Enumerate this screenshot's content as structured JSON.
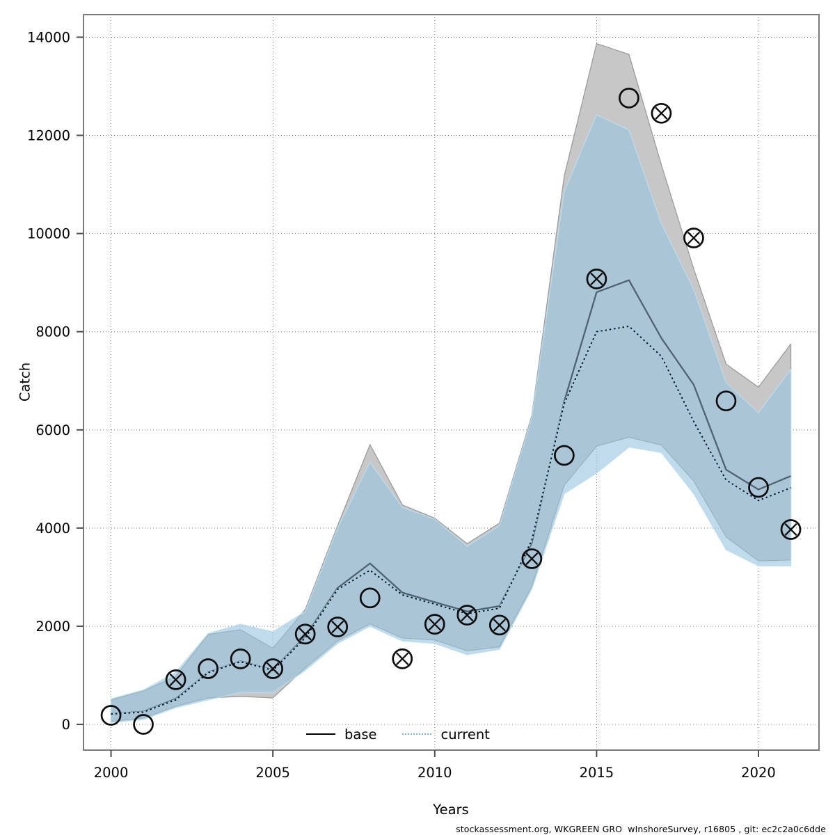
{
  "footer": {
    "text": "stockassessment.org, WKGREEN GRO  wInshoreSurvey, r16805 , git: ec2c2a0c6dde"
  },
  "chart_data": {
    "type": "line",
    "title": "",
    "xlabel": "Years",
    "ylabel": "Catch",
    "grid": "dotted",
    "xlim": [
      1999.15,
      2021.87
    ],
    "ylim": [
      -524,
      14460
    ],
    "xticks": [
      2000,
      2005,
      2010,
      2015,
      2020
    ],
    "yticks": [
      0,
      2000,
      4000,
      6000,
      8000,
      10000,
      12000,
      14000
    ],
    "x": [
      2000,
      2001,
      2002,
      2003,
      2004,
      2005,
      2006,
      2007,
      2008,
      2009,
      2010,
      2011,
      2012,
      2013,
      2014,
      2015,
      2016,
      2017,
      2018,
      2019,
      2020,
      2021
    ],
    "series": [
      {
        "name": "base",
        "style": "solid",
        "color": "#4f6271",
        "values": [
          215,
          260,
          520,
          1060,
          1285,
          1110,
          1790,
          2780,
          3280,
          2685,
          2490,
          2300,
          2410,
          3700,
          6580,
          8805,
          9050,
          7870,
          6920,
          5190,
          4785,
          5060
        ]
      },
      {
        "name": "current",
        "style": "dotted",
        "color": "#0b0b0b",
        "underlay_color": "#a2cde6",
        "values": [
          210,
          250,
          500,
          1053,
          1276,
          1101,
          1760,
          2750,
          3140,
          2640,
          2450,
          2255,
          2367,
          3757,
          6536,
          8000,
          8110,
          7500,
          6170,
          4980,
          4560,
          4820
        ]
      }
    ],
    "bands": [
      {
        "name": "base-confidence-band",
        "fill": "#c7c7c7",
        "stroke": "#9c9c9c",
        "lo": [
          60,
          130,
          370,
          540,
          570,
          540,
          1150,
          1700,
          2050,
          1760,
          1720,
          1500,
          1580,
          2810,
          4870,
          5670,
          5850,
          5690,
          4960,
          3820,
          3330,
          3350
        ],
        "hi": [
          500,
          680,
          980,
          1830,
          1930,
          1550,
          2340,
          4050,
          5700,
          4470,
          4200,
          3680,
          4100,
          6290,
          11170,
          13870,
          13650,
          11400,
          9280,
          7340,
          6870,
          7750
        ]
      },
      {
        "name": "current-confidence-band",
        "fill": "rgba(150,196,224,0.60)",
        "stroke": "rgba(186,220,238,0.95)",
        "lo": [
          40,
          100,
          340,
          500,
          650,
          650,
          1100,
          1650,
          2000,
          1700,
          1650,
          1420,
          1530,
          2760,
          4700,
          5120,
          5650,
          5540,
          4700,
          3560,
          3230,
          3230
        ],
        "hi": [
          520,
          700,
          1060,
          1850,
          2040,
          1885,
          2300,
          4000,
          5340,
          4420,
          4180,
          3630,
          4050,
          6250,
          10850,
          12420,
          12110,
          10200,
          8860,
          6960,
          6350,
          7230
        ]
      }
    ],
    "points": [
      {
        "x": 2000,
        "y": 185,
        "marker": "circle"
      },
      {
        "x": 2001,
        "y": 0,
        "marker": "circle"
      },
      {
        "x": 2002,
        "y": 910,
        "marker": "crossed-circle"
      },
      {
        "x": 2003,
        "y": 1135,
        "marker": "circle"
      },
      {
        "x": 2004,
        "y": 1335,
        "marker": "circle"
      },
      {
        "x": 2005,
        "y": 1135,
        "marker": "crossed-circle"
      },
      {
        "x": 2006,
        "y": 1840,
        "marker": "crossed-circle"
      },
      {
        "x": 2007,
        "y": 1985,
        "marker": "crossed-circle"
      },
      {
        "x": 2008,
        "y": 2576,
        "marker": "circle"
      },
      {
        "x": 2009,
        "y": 1337,
        "marker": "crossed-circle"
      },
      {
        "x": 2010,
        "y": 2040,
        "marker": "crossed-circle"
      },
      {
        "x": 2011,
        "y": 2226,
        "marker": "crossed-circle"
      },
      {
        "x": 2012,
        "y": 2023,
        "marker": "crossed-circle"
      },
      {
        "x": 2013,
        "y": 3375,
        "marker": "crossed-circle"
      },
      {
        "x": 2014,
        "y": 5480,
        "marker": "circle"
      },
      {
        "x": 2015,
        "y": 9075,
        "marker": "crossed-circle"
      },
      {
        "x": 2016,
        "y": 12760,
        "marker": "circle"
      },
      {
        "x": 2017,
        "y": 12450,
        "marker": "crossed-circle"
      },
      {
        "x": 2018,
        "y": 9910,
        "marker": "crossed-circle"
      },
      {
        "x": 2019,
        "y": 6590,
        "marker": "circle"
      },
      {
        "x": 2020,
        "y": 4828,
        "marker": "circle"
      },
      {
        "x": 2021,
        "y": 3970,
        "marker": "crossed-circle"
      }
    ],
    "legend": {
      "position": "bottom-center",
      "entries": [
        "base",
        "current"
      ]
    }
  }
}
